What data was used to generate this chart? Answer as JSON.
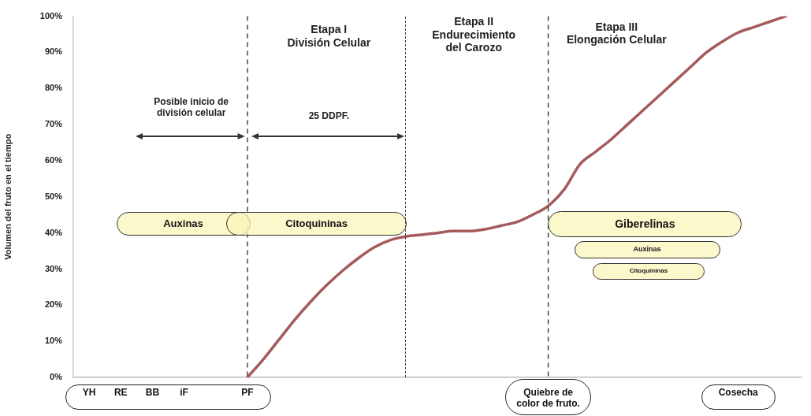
{
  "chart_data": {
    "type": "line",
    "ylabel": "Volumen del fruto en el tiempo",
    "categories": [
      null,
      "YH",
      null,
      "RE",
      null,
      "BB",
      null,
      "iF",
      null,
      null,
      null,
      "PF",
      null,
      null,
      null,
      null,
      null,
      null,
      null,
      null,
      null,
      null,
      null,
      null,
      null,
      null,
      null,
      null,
      null,
      null,
      "Quiebre de\ncolor de fruto.",
      null,
      null,
      null,
      null,
      null,
      null,
      null,
      null,
      null,
      null,
      null,
      "Cosecha",
      null,
      null,
      null,
      null
    ],
    "series": [
      {
        "color": "#a55a5c",
        "values": [
          null,
          null,
          null,
          null,
          null,
          null,
          null,
          null,
          null,
          null,
          null,
          0,
          5,
          10.5,
          16,
          21,
          25.5,
          29.5,
          33,
          36,
          38,
          39,
          39.5,
          40,
          40.5,
          40.5,
          41,
          42,
          43,
          45,
          47.5,
          52,
          59,
          62.5,
          66,
          70,
          74,
          78,
          82,
          86,
          90,
          93,
          95.5,
          97,
          98.5,
          100,
          null
        ]
      }
    ],
    "ylim": [
      0,
      100
    ],
    "yticks": [
      {
        "value": 0,
        "label": "0%"
      },
      {
        "value": 10,
        "label": "10%"
      },
      {
        "value": 20,
        "label": "20%"
      },
      {
        "value": 30,
        "label": "30%"
      },
      {
        "value": 40,
        "label": "40%"
      },
      {
        "value": 50,
        "label": "50%"
      },
      {
        "value": 60,
        "label": "60%"
      },
      {
        "value": 70,
        "label": "70%"
      },
      {
        "value": 80,
        "label": "80%"
      },
      {
        "value": 90,
        "label": "90%"
      },
      {
        "value": 100,
        "label": "100%"
      }
    ],
    "marker": "none",
    "line_style": "solid",
    "ref_lines": [
      {
        "axis": "x",
        "value": "PF",
        "line_style": "dashed",
        "color": "#444444"
      },
      {
        "axis": "x",
        "value": "Quiebre de\ncolor de fruto.",
        "line_style": "dashed",
        "color": "#444444"
      }
    ],
    "annotations": [
      "Etapa I\nDivisión Celular",
      "Etapa II\nEndurecimiento\ndel Carozo",
      "Etapa III\nElongación Celular",
      "Posible inicio de\ndivisión celular",
      "25 DDPF.",
      "Auxinas",
      "Citoquininas",
      "Giberelinas",
      "Auxinas",
      "Citoquininas"
    ]
  }
}
